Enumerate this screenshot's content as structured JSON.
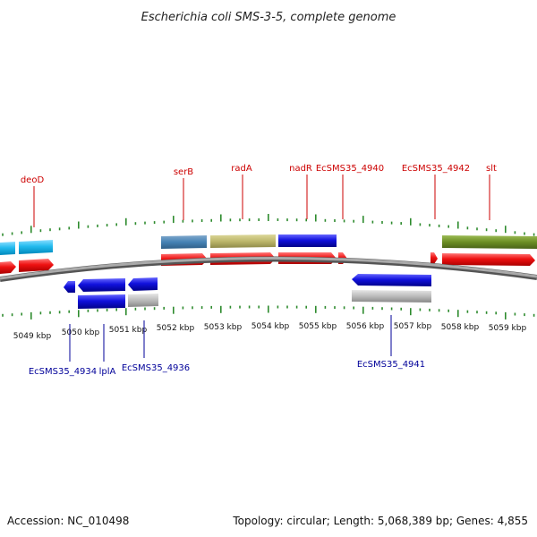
{
  "title": "Escherichia coli SMS-3-5, complete genome",
  "accession": "Accession: NC_010498",
  "summary": "Topology: circular; Length: 5,068,389 bp; Genes: 4,855",
  "scale_labels": [
    "5049 kbp",
    "5050 kbp",
    "5051 kbp",
    "5052 kbp",
    "5053 kbp",
    "5054 kbp",
    "5055 kbp",
    "5056 kbp",
    "5057 kbp",
    "5058 kbp",
    "5059 kbp"
  ],
  "top_gene_labels": [
    "deoD",
    "serB",
    "radA",
    "nadR",
    "EcSMS35_4940",
    "EcSMS35_4942",
    "slt"
  ],
  "bottom_gene_labels": [
    "EcSMS35_4934",
    "lplA",
    "EcSMS35_4936",
    "EcSMS35_4941"
  ],
  "colors": {
    "title": "#222222",
    "top_label": "#cc0000",
    "bottom_label": "#000099",
    "tick": "#2e8b2e",
    "backbone": "#888888",
    "red_cds": "#ee1111",
    "blue_feature": "#1111dd",
    "cyan_feature": "#22bbee",
    "steelblue_feature": "#4682b4",
    "khaki_feature": "#bdb76b",
    "olive_feature": "#6b8e23",
    "grey_feature": "#bbbbbb"
  }
}
